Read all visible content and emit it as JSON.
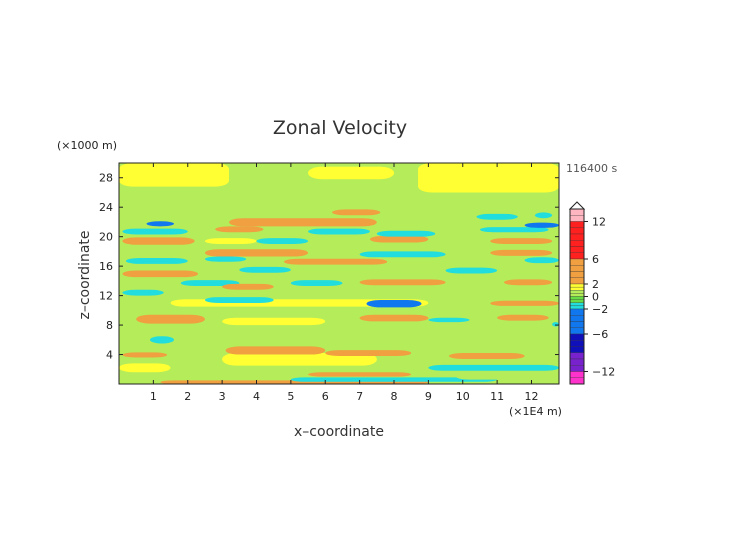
{
  "chart_data": {
    "type": "heatmap",
    "title": "Zonal Velocity",
    "xlabel": "x–coordinate",
    "ylabel": "z–coordinate",
    "x_unit": "(×1E4 m)",
    "y_unit": "(×1000 m)",
    "time_label": "116400 s",
    "xlim": [
      0,
      12.8
    ],
    "ylim": [
      0,
      30
    ],
    "x_ticks": [
      "1",
      "2",
      "3",
      "4",
      "5",
      "6",
      "7",
      "8",
      "9",
      "10",
      "11",
      "12"
    ],
    "y_ticks": [
      "4",
      "8",
      "12",
      "16",
      "20",
      "24",
      "28"
    ],
    "colorbar": {
      "tick_labels": [
        "12",
        "6",
        "2",
        "0",
        "−2",
        "−6",
        "−12"
      ],
      "range": [
        -14,
        14
      ],
      "colors": {
        "pink": "#ffb6c1",
        "red": "#ff2020",
        "orange": "#f0a040",
        "yellow": "#ffff33",
        "lightgreen": "#b4ec5a",
        "green": "#66dd44",
        "cyan": "#22dddd",
        "blue": "#1177ee",
        "navy": "#1010bb",
        "purple": "#7722cc",
        "magenta": "#ff33cc"
      }
    },
    "bands": [
      {
        "x0": 0.0,
        "x1": 12.8,
        "y0": 0.0,
        "y1": 1.4,
        "level": 0.5
      },
      {
        "x0": 1.2,
        "x1": 9.0,
        "y0": 0.0,
        "y1": 0.5,
        "level": 2.5
      },
      {
        "x0": 5.0,
        "x1": 11.0,
        "y0": 0.3,
        "y1": 0.9,
        "level": -1.5
      },
      {
        "x0": 5.5,
        "x1": 8.5,
        "y0": 1.0,
        "y1": 1.6,
        "level": 2.5
      },
      {
        "x0": 9.8,
        "x1": 12.8,
        "y0": 0.6,
        "y1": 1.4,
        "level": 0.5
      },
      {
        "x0": 0.0,
        "x1": 1.5,
        "y0": 1.6,
        "y1": 2.8,
        "level": 1.0
      },
      {
        "x0": 9.0,
        "x1": 12.8,
        "y0": 1.8,
        "y1": 2.6,
        "level": -1.5
      },
      {
        "x0": 3.0,
        "x1": 7.5,
        "y0": 2.5,
        "y1": 4.2,
        "level": 1.2
      },
      {
        "x0": 0.1,
        "x1": 1.4,
        "y0": 3.6,
        "y1": 4.3,
        "level": 2.5
      },
      {
        "x0": 3.1,
        "x1": 6.0,
        "y0": 4.0,
        "y1": 5.1,
        "level": 2.5
      },
      {
        "x0": 6.0,
        "x1": 8.5,
        "y0": 3.8,
        "y1": 4.6,
        "level": 2.5
      },
      {
        "x0": 9.6,
        "x1": 11.8,
        "y0": 3.4,
        "y1": 4.2,
        "level": 2.5
      },
      {
        "x0": 0.9,
        "x1": 1.6,
        "y0": 5.5,
        "y1": 6.5,
        "level": -1.5
      },
      {
        "x0": 0.0,
        "x1": 12.8,
        "y0": 6.5,
        "y1": 8.0,
        "level": 0.5
      },
      {
        "x0": 0.5,
        "x1": 2.5,
        "y0": 8.2,
        "y1": 9.4,
        "level": 2.5
      },
      {
        "x0": 3.0,
        "x1": 6.0,
        "y0": 8.0,
        "y1": 9.0,
        "level": 1.2
      },
      {
        "x0": 9.0,
        "x1": 10.2,
        "y0": 8.4,
        "y1": 9.0,
        "level": -1.5
      },
      {
        "x0": 7.0,
        "x1": 9.0,
        "y0": 8.5,
        "y1": 9.4,
        "level": 2.5
      },
      {
        "x0": 11.0,
        "x1": 12.5,
        "y0": 8.6,
        "y1": 9.4,
        "level": 2.5
      },
      {
        "x0": 12.6,
        "x1": 12.8,
        "y0": 7.8,
        "y1": 8.4,
        "level": -1.5
      },
      {
        "x0": 1.5,
        "x1": 9.0,
        "y0": 10.5,
        "y1": 11.5,
        "level": 1.2
      },
      {
        "x0": 2.5,
        "x1": 4.5,
        "y0": 11.0,
        "y1": 11.8,
        "level": -1.5
      },
      {
        "x0": 7.2,
        "x1": 8.8,
        "y0": 10.4,
        "y1": 11.4,
        "level": -2.5
      },
      {
        "x0": 10.8,
        "x1": 12.8,
        "y0": 10.6,
        "y1": 11.3,
        "level": 2.5
      },
      {
        "x0": 0.1,
        "x1": 1.3,
        "y0": 12.0,
        "y1": 12.8,
        "level": -1.5
      },
      {
        "x0": 1.8,
        "x1": 3.5,
        "y0": 13.3,
        "y1": 14.1,
        "level": -1.5
      },
      {
        "x0": 3.0,
        "x1": 4.5,
        "y0": 12.8,
        "y1": 13.6,
        "level": 2.5
      },
      {
        "x0": 5.0,
        "x1": 6.5,
        "y0": 13.3,
        "y1": 14.1,
        "level": -1.5
      },
      {
        "x0": 7.0,
        "x1": 9.5,
        "y0": 13.4,
        "y1": 14.2,
        "level": 2.5
      },
      {
        "x0": 11.2,
        "x1": 12.6,
        "y0": 13.4,
        "y1": 14.2,
        "level": 2.5
      },
      {
        "x0": 0.1,
        "x1": 2.3,
        "y0": 14.5,
        "y1": 15.4,
        "level": 2.5
      },
      {
        "x0": 3.5,
        "x1": 5.0,
        "y0": 15.1,
        "y1": 15.9,
        "level": -1.5
      },
      {
        "x0": 9.5,
        "x1": 11.0,
        "y0": 15.0,
        "y1": 15.8,
        "level": -1.5
      },
      {
        "x0": 4.8,
        "x1": 7.8,
        "y0": 16.2,
        "y1": 17.0,
        "level": 2.5
      },
      {
        "x0": 0.2,
        "x1": 2.0,
        "y0": 16.3,
        "y1": 17.1,
        "level": -1.5
      },
      {
        "x0": 2.5,
        "x1": 3.7,
        "y0": 16.6,
        "y1": 17.3,
        "level": -1.5
      },
      {
        "x0": 11.8,
        "x1": 12.8,
        "y0": 16.4,
        "y1": 17.2,
        "level": -1.5
      },
      {
        "x0": 2.5,
        "x1": 5.5,
        "y0": 17.3,
        "y1": 18.3,
        "level": 2.5
      },
      {
        "x0": 7.0,
        "x1": 9.5,
        "y0": 17.2,
        "y1": 18.0,
        "level": -1.5
      },
      {
        "x0": 10.8,
        "x1": 12.6,
        "y0": 17.4,
        "y1": 18.2,
        "level": 2.5
      },
      {
        "x0": 0.1,
        "x1": 2.2,
        "y0": 18.9,
        "y1": 19.9,
        "level": 2.5
      },
      {
        "x0": 2.5,
        "x1": 4.0,
        "y0": 19.0,
        "y1": 19.8,
        "level": 1.2
      },
      {
        "x0": 4.0,
        "x1": 5.5,
        "y0": 19.0,
        "y1": 19.8,
        "level": -1.5
      },
      {
        "x0": 7.3,
        "x1": 9.0,
        "y0": 19.2,
        "y1": 20.1,
        "level": 2.5
      },
      {
        "x0": 10.8,
        "x1": 12.6,
        "y0": 19.0,
        "y1": 19.8,
        "level": 2.5
      },
      {
        "x0": 0.1,
        "x1": 2.0,
        "y0": 20.3,
        "y1": 21.1,
        "level": -1.5
      },
      {
        "x0": 2.8,
        "x1": 4.2,
        "y0": 20.6,
        "y1": 21.4,
        "level": 2.5
      },
      {
        "x0": 5.5,
        "x1": 7.3,
        "y0": 20.3,
        "y1": 21.1,
        "level": -1.5
      },
      {
        "x0": 7.5,
        "x1": 9.2,
        "y0": 20.0,
        "y1": 20.8,
        "level": -1.5
      },
      {
        "x0": 10.5,
        "x1": 12.5,
        "y0": 20.6,
        "y1": 21.3,
        "level": -1.5
      },
      {
        "x0": 0.8,
        "x1": 1.6,
        "y0": 21.4,
        "y1": 22.1,
        "level": -2.5
      },
      {
        "x0": 3.2,
        "x1": 7.5,
        "y0": 21.4,
        "y1": 22.5,
        "level": 2.5
      },
      {
        "x0": 11.8,
        "x1": 12.8,
        "y0": 21.2,
        "y1": 21.9,
        "level": -2.5
      },
      {
        "x0": 6.2,
        "x1": 7.6,
        "y0": 22.9,
        "y1": 23.7,
        "level": 2.5
      },
      {
        "x0": 10.4,
        "x1": 11.6,
        "y0": 22.3,
        "y1": 23.1,
        "level": -1.5
      },
      {
        "x0": 12.1,
        "x1": 12.6,
        "y0": 22.5,
        "y1": 23.3,
        "level": -1.5
      },
      {
        "x0": 0.0,
        "x1": 12.8,
        "y0": 24.5,
        "y1": 27.0,
        "level": 0.5
      },
      {
        "x0": 0.0,
        "x1": 3.2,
        "y0": 26.8,
        "y1": 30.0,
        "level": 1.2
      },
      {
        "x0": 8.7,
        "x1": 12.8,
        "y0": 26.0,
        "y1": 30.0,
        "level": 1.2
      },
      {
        "x0": 5.5,
        "x1": 8.0,
        "y0": 27.8,
        "y1": 29.5,
        "level": 1.2
      }
    ]
  }
}
